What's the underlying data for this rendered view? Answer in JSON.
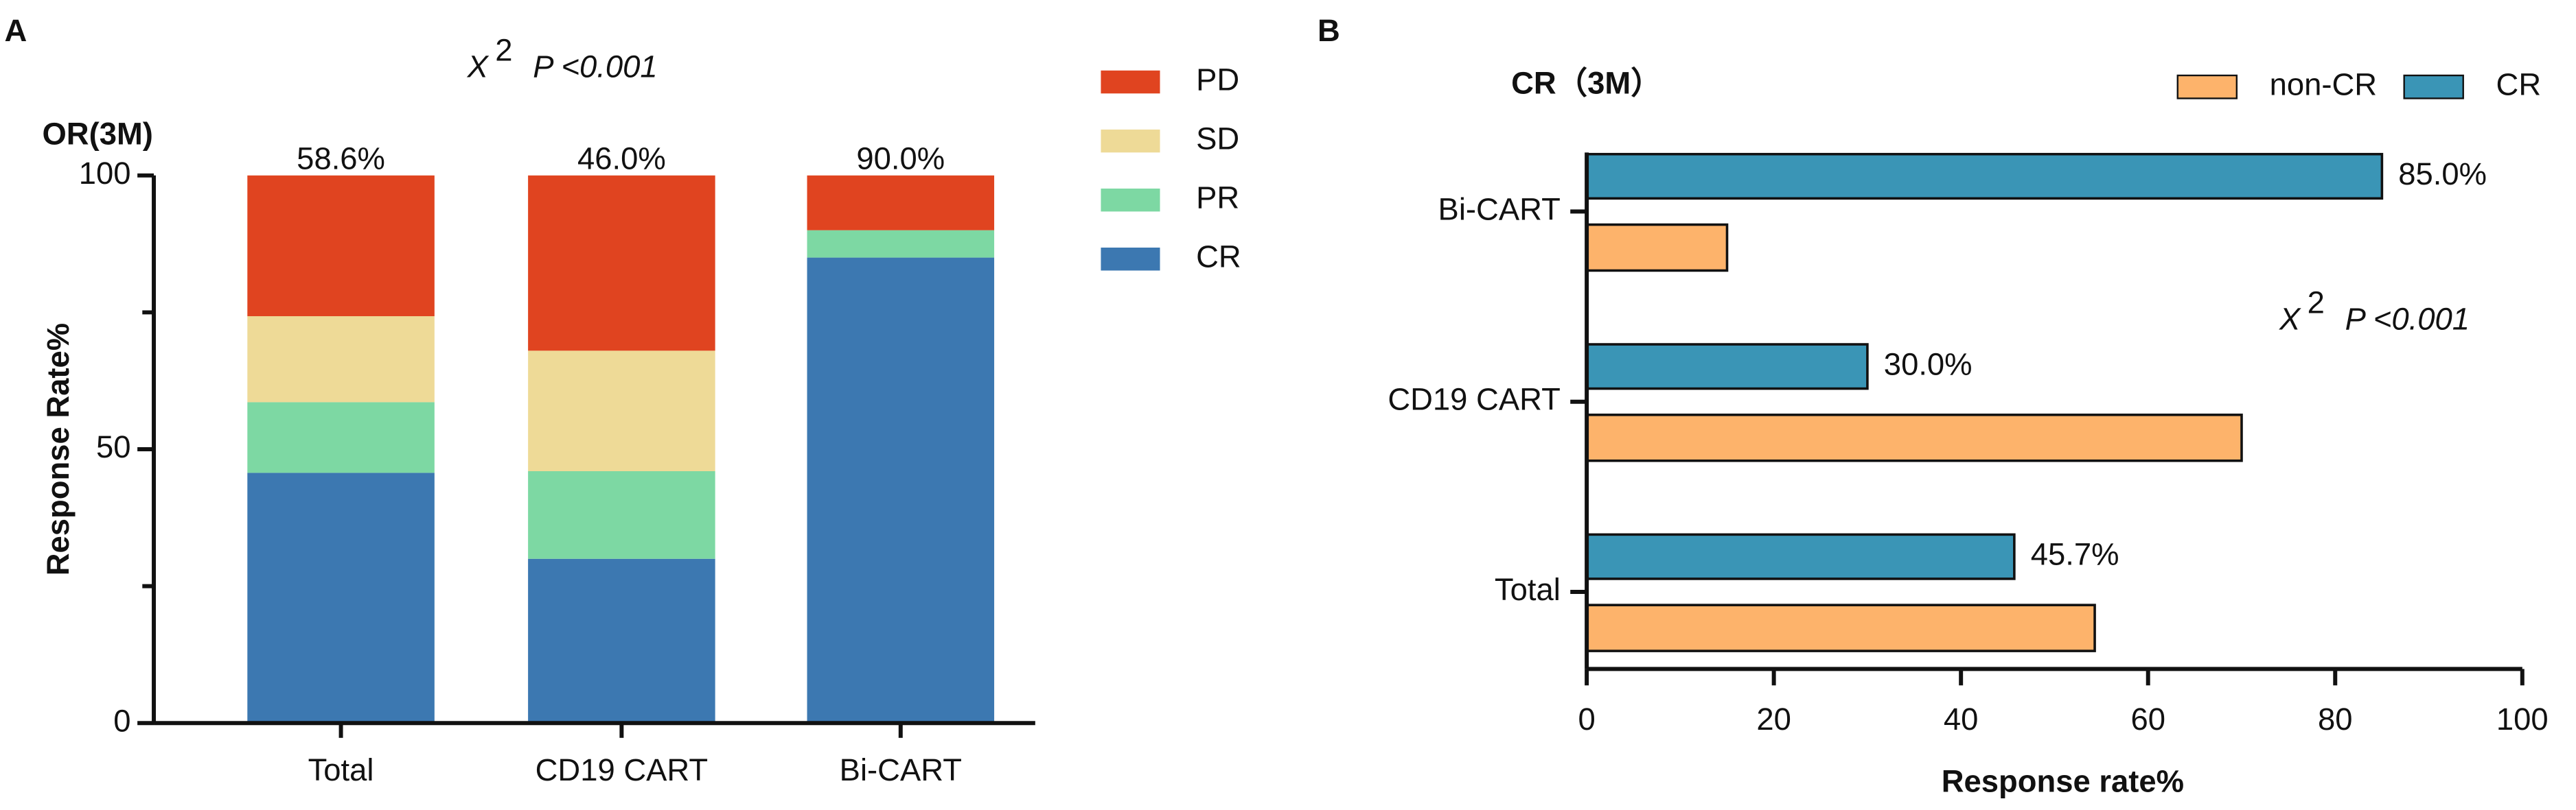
{
  "chart_data": [
    {
      "type": "stacked_bar",
      "panel": "A",
      "subtitle": "OR(3M)",
      "y_label": "Response Rate%",
      "annotation": {
        "symbol": "X",
        "sup": "2",
        "text": "P <0.001"
      },
      "categories": [
        "Total",
        "CD19 CART",
        "Bi-CART"
      ],
      "series": [
        {
          "name": "CR",
          "color": "#3c78b1",
          "values": [
            45.7,
            30,
            85
          ]
        },
        {
          "name": "PR",
          "color": "#7dd8a3",
          "values": [
            12.9,
            16,
            5
          ]
        },
        {
          "name": "SD",
          "color": "#eeda97",
          "values": [
            15.7,
            22,
            0
          ]
        },
        {
          "name": "PD",
          "color": "#e04420",
          "values": [
            25.7,
            32,
            10
          ]
        }
      ],
      "top_labels": {
        "values": [
          58.6,
          46.0,
          90.0
        ],
        "value_labels": [
          "58.6%",
          "46.0%",
          "90.0%"
        ]
      },
      "ylim": [
        0,
        100
      ],
      "yticks": [
        0,
        50,
        100
      ]
    },
    {
      "type": "hbar",
      "panel": "B",
      "title": "CR（3M）",
      "x_label": "Response rate%",
      "annotation": {
        "symbol": "X",
        "sup": "2",
        "text": "P <0.001"
      },
      "categories": [
        "Total",
        "CD19 CART",
        "Bi-CART"
      ],
      "series": [
        {
          "name": "non-CR",
          "color": "#fdb36b",
          "values": [
            54.3,
            70,
            15
          ]
        },
        {
          "name": "CR",
          "color": "#3a95b6",
          "values": [
            45.7,
            30,
            85
          ],
          "value_labels": [
            "45.7%",
            "30.0%",
            "85.0%"
          ]
        }
      ],
      "xlim": [
        0,
        100
      ],
      "xticks": [
        0,
        20,
        40,
        60,
        80,
        100
      ]
    }
  ]
}
